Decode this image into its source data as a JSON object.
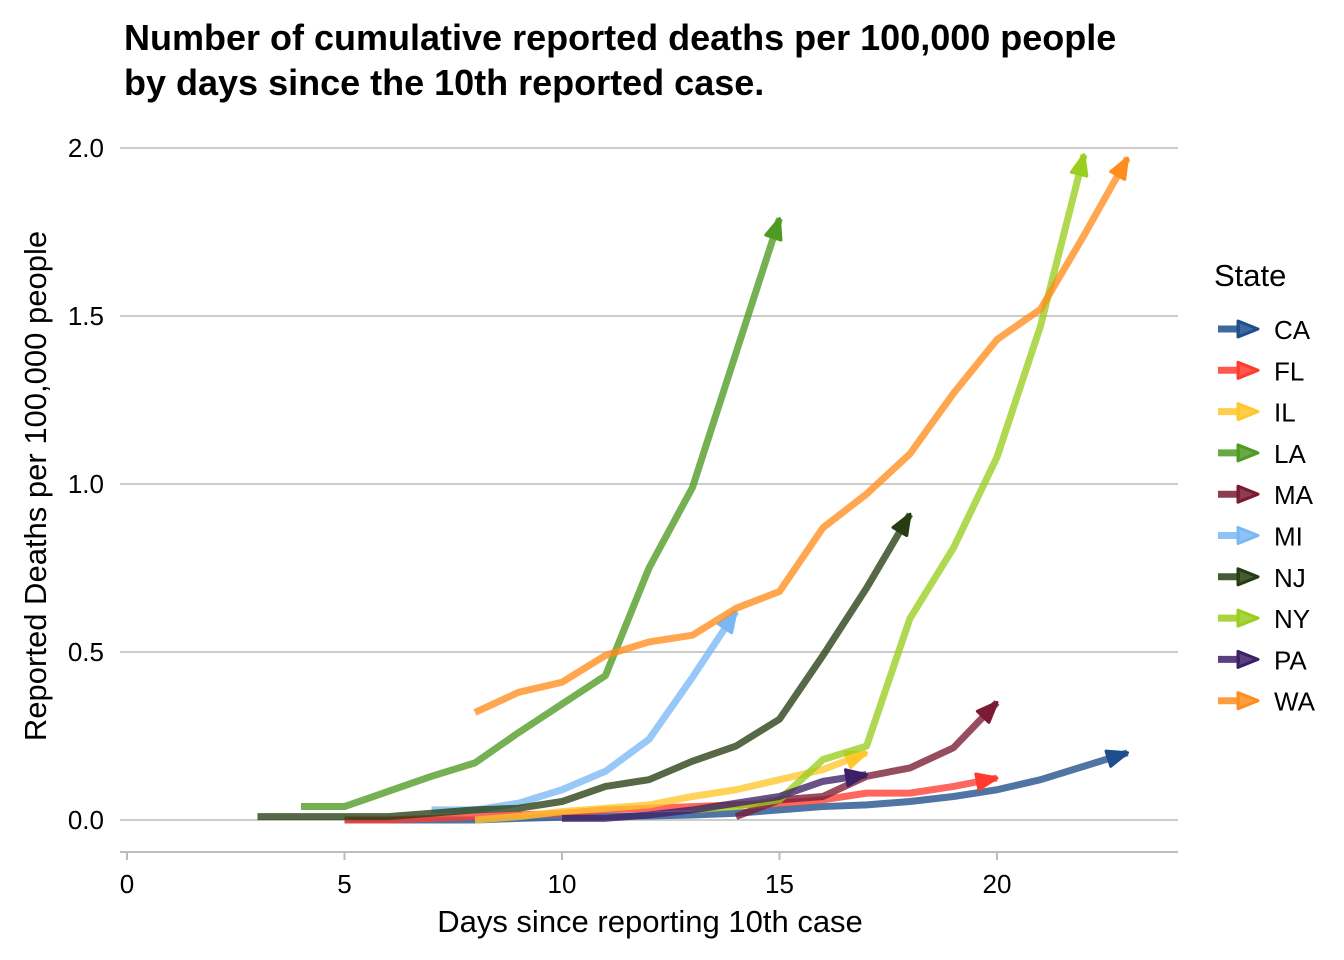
{
  "chart_data": {
    "type": "line",
    "title_lines": [
      "Number of cumulative reported deaths per 100,000 people",
      "by days since the 10th reported case."
    ],
    "xlabel": "Days since reporting 10th case",
    "ylabel": "Reported Deaths per 100,000 people",
    "xlim": [
      0,
      24
    ],
    "ylim": [
      -0.08,
      2.0
    ],
    "x_ticks": [
      0,
      5,
      10,
      15,
      20
    ],
    "y_ticks": [
      0.0,
      0.5,
      1.0,
      1.5,
      2.0
    ],
    "x_tick_labels": [
      "0",
      "5",
      "10",
      "15",
      "20"
    ],
    "y_tick_labels": [
      "0.0",
      "0.5",
      "1.0",
      "1.5",
      "2.0"
    ],
    "grid": "horizontal major",
    "legend_title": "State",
    "legend_position": "right",
    "end_marker": "arrow",
    "series": [
      {
        "name": "CA",
        "color": "#1f4e8c",
        "x": [
          5,
          6,
          7,
          8,
          9,
          10,
          11,
          12,
          13,
          14,
          15,
          16,
          17,
          18,
          19,
          20,
          21,
          22,
          23
        ],
        "y": [
          0.0,
          0.0,
          0.0,
          0.0,
          0.005,
          0.008,
          0.01,
          0.012,
          0.015,
          0.02,
          0.03,
          0.04,
          0.045,
          0.055,
          0.07,
          0.09,
          0.12,
          0.16,
          0.2
        ]
      },
      {
        "name": "FL",
        "color": "#ff3b2f",
        "x": [
          5,
          6,
          7,
          8,
          9,
          10,
          11,
          12,
          13,
          14,
          15,
          16,
          17,
          18,
          19,
          20
        ],
        "y": [
          0.0,
          0.0,
          0.005,
          0.01,
          0.015,
          0.02,
          0.03,
          0.035,
          0.04,
          0.045,
          0.05,
          0.06,
          0.08,
          0.08,
          0.1,
          0.125
        ]
      },
      {
        "name": "IL",
        "color": "#ffc72c",
        "x": [
          8,
          9,
          10,
          11,
          12,
          13,
          14,
          15,
          16,
          17
        ],
        "y": [
          0.0,
          0.01,
          0.025,
          0.035,
          0.045,
          0.07,
          0.09,
          0.12,
          0.15,
          0.2
        ]
      },
      {
        "name": "LA",
        "color": "#4e9a22",
        "x": [
          4,
          5,
          6,
          7,
          8,
          9,
          10,
          11,
          12,
          13,
          14,
          15
        ],
        "y": [
          0.04,
          0.04,
          0.085,
          0.13,
          0.17,
          0.26,
          0.345,
          0.43,
          0.75,
          0.99,
          1.39,
          1.79
        ]
      },
      {
        "name": "MA",
        "color": "#7a1b33",
        "x": [
          14,
          15,
          16,
          17,
          18,
          19,
          20
        ],
        "y": [
          0.01,
          0.06,
          0.07,
          0.13,
          0.155,
          0.215,
          0.35
        ]
      },
      {
        "name": "MI",
        "color": "#7ab8f5",
        "x": [
          7,
          8,
          9,
          10,
          11,
          12,
          13,
          14
        ],
        "y": [
          0.03,
          0.03,
          0.05,
          0.09,
          0.145,
          0.24,
          0.425,
          0.62
        ]
      },
      {
        "name": "NJ",
        "color": "#263d12",
        "x": [
          3,
          4,
          5,
          6,
          7,
          8,
          9,
          10,
          11,
          12,
          13,
          14,
          15,
          16,
          17,
          18
        ],
        "y": [
          0.01,
          0.01,
          0.01,
          0.01,
          0.02,
          0.03,
          0.035,
          0.055,
          0.1,
          0.12,
          0.175,
          0.22,
          0.3,
          0.49,
          0.69,
          0.91
        ]
      },
      {
        "name": "NY",
        "color": "#9acd1f",
        "x": [
          13,
          14,
          15,
          16,
          17,
          18,
          19,
          20,
          21,
          22
        ],
        "y": [
          0.03,
          0.04,
          0.06,
          0.18,
          0.22,
          0.6,
          0.81,
          1.08,
          1.47,
          1.98
        ]
      },
      {
        "name": "PA",
        "color": "#3d1f66",
        "x": [
          10,
          11,
          12,
          13,
          14,
          15,
          16,
          17
        ],
        "y": [
          0.005,
          0.005,
          0.015,
          0.03,
          0.05,
          0.07,
          0.115,
          0.135
        ]
      },
      {
        "name": "WA",
        "color": "#ff8d1e",
        "x": [
          8,
          9,
          10,
          11,
          12,
          13,
          14,
          15,
          16,
          17,
          18,
          19,
          20,
          21,
          22,
          23
        ],
        "y": [
          0.32,
          0.38,
          0.41,
          0.49,
          0.53,
          0.55,
          0.63,
          0.68,
          0.87,
          0.97,
          1.09,
          1.27,
          1.43,
          1.52,
          1.74,
          1.97
        ]
      }
    ]
  }
}
